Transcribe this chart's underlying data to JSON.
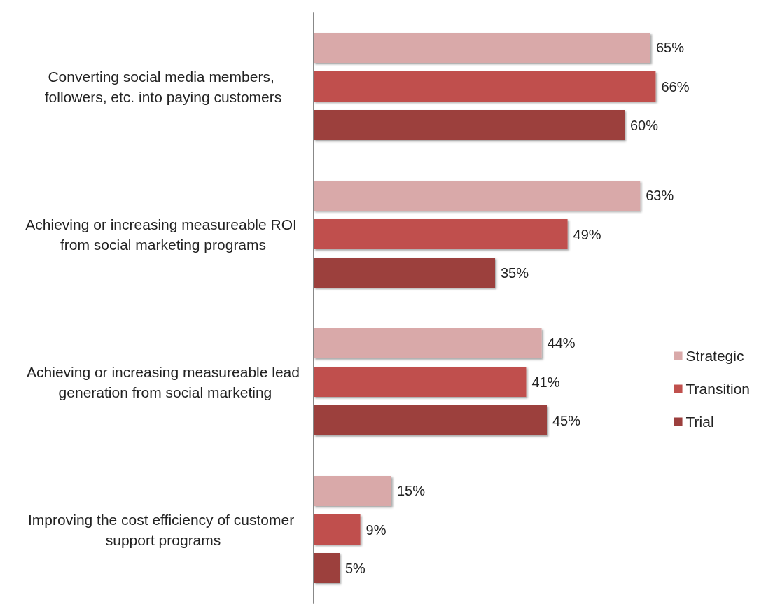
{
  "chart_data": {
    "type": "bar",
    "orientation": "horizontal",
    "categories": [
      "Converting social media members, followers, etc. into paying customers",
      "Achieving or increasing measureable ROI from social marketing programs",
      "Achieving or increasing measureable lead generation from social marketing",
      "Improving the cost efficiency of customer support programs"
    ],
    "series": [
      {
        "name": "Strategic",
        "color": "#d9a9a9",
        "values": [
          65,
          63,
          44,
          15
        ],
        "value_labels": [
          "65%",
          "63%",
          "44%",
          "15%"
        ]
      },
      {
        "name": "Transition",
        "color": "#c0504d",
        "values": [
          66,
          49,
          41,
          9
        ],
        "value_labels": [
          "66%",
          "49%",
          "41%",
          "9%"
        ]
      },
      {
        "name": "Trial",
        "color": "#9c3f3d",
        "values": [
          60,
          35,
          45,
          5
        ],
        "value_labels": [
          "60%",
          "35%",
          "45%",
          "5%"
        ]
      }
    ],
    "legend": "right",
    "tick_labels": "y"
  }
}
